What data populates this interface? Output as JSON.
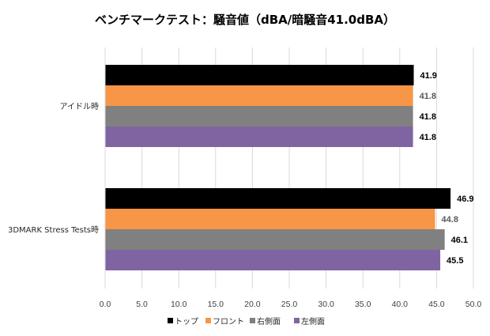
{
  "chart_data": {
    "type": "bar",
    "orientation": "horizontal",
    "title": "ベンチマークテスト：騒音値（dBA/暗騒音41.0dBA）",
    "categories": [
      "アイドル時",
      "3DMARK Stress Tests時"
    ],
    "series": [
      {
        "name": "トップ",
        "color": "#000000",
        "values": [
          41.9,
          46.9
        ]
      },
      {
        "name": "フロント",
        "color": "#F79646",
        "values": [
          41.8,
          44.8
        ]
      },
      {
        "name": "右側面",
        "color": "#808080",
        "values": [
          41.8,
          46.1
        ]
      },
      {
        "name": "左側面",
        "color": "#8064A2",
        "values": [
          41.8,
          45.5
        ]
      }
    ],
    "xlim": [
      0,
      50
    ],
    "xticks": [
      "0.0",
      "5.0",
      "10.0",
      "15.0",
      "20.0",
      "25.0",
      "30.0",
      "35.0",
      "40.0",
      "45.0",
      "50.0"
    ],
    "grid": "vertical",
    "legend_position": "bottom",
    "data_label_colors": [
      "#000000",
      "#595959",
      "#000000",
      "#000000"
    ]
  }
}
